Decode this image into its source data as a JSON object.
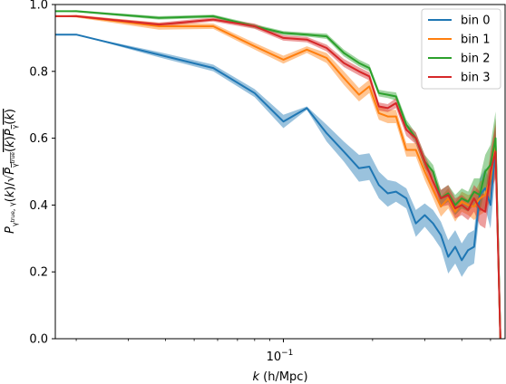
{
  "chart_data": {
    "type": "line",
    "xscale": "log",
    "xlim": [
      0.017,
      0.56
    ],
    "ylim": [
      0.0,
      1.0
    ],
    "xlabel_html": "<tspan font-style='italic'>k</tspan> (h/Mpc)",
    "ylabel_html": "<tspan font-style='italic'>P</tspan><tspan font-size='8' dy='4'>γ<tspan font-size='6' dy='-3'>true</tspan>, γ</tspan><tspan dy='-1'>(<tspan font-style='italic'>k</tspan>)/√</tspan><tspan text-decoration='overline'><tspan font-style='italic'>P</tspan><tspan font-size='8' dy='4'>γ<tspan font-size='6' dy='-3'>true</tspan></tspan><tspan dy='-1'>(<tspan font-style='italic'>k</tspan>)<tspan font-style='italic'>P</tspan></tspan><tspan font-size='8' dy='4'>γ</tspan><tspan dy='-4'>(<tspan font-style='italic'>k</tspan>)</tspan></tspan>",
    "xticks": [
      {
        "value": 0.1,
        "label": "10",
        "exp": "−1"
      }
    ],
    "yticks": [
      0.0,
      0.2,
      0.4,
      0.6,
      0.8,
      1.0
    ],
    "ytick_labels": [
      "0.0",
      "0.2",
      "0.4",
      "0.6",
      "0.8",
      "1.0"
    ],
    "grid": false,
    "legend_position": "top-right",
    "series": [
      {
        "name": "bin 0",
        "color": "#1f77b4",
        "x": [
          0.017,
          0.02,
          0.038,
          0.058,
          0.08,
          0.1,
          0.12,
          0.14,
          0.16,
          0.18,
          0.195,
          0.21,
          0.225,
          0.24,
          0.26,
          0.28,
          0.3,
          0.32,
          0.34,
          0.36,
          0.38,
          0.4,
          0.42,
          0.44,
          0.46,
          0.48,
          0.5,
          0.52,
          0.54
        ],
        "y": [
          0.91,
          0.91,
          0.85,
          0.81,
          0.735,
          0.65,
          0.69,
          0.615,
          0.56,
          0.51,
          0.515,
          0.46,
          0.435,
          0.44,
          0.42,
          0.345,
          0.37,
          0.345,
          0.31,
          0.245,
          0.275,
          0.235,
          0.265,
          0.275,
          0.43,
          0.45,
          0.4,
          0.58,
          0.0
        ],
        "err": [
          0.0,
          0.0,
          0.008,
          0.01,
          0.012,
          0.02,
          0.005,
          0.025,
          0.03,
          0.04,
          0.04,
          0.04,
          0.04,
          0.03,
          0.03,
          0.04,
          0.035,
          0.04,
          0.04,
          0.05,
          0.05,
          0.05,
          0.05,
          0.05,
          0.05,
          0.06,
          0.07,
          0.08,
          0.0
        ]
      },
      {
        "name": "bin 1",
        "color": "#ff7f0e",
        "x": [
          0.017,
          0.02,
          0.038,
          0.058,
          0.08,
          0.1,
          0.12,
          0.14,
          0.16,
          0.18,
          0.195,
          0.21,
          0.225,
          0.24,
          0.26,
          0.28,
          0.3,
          0.32,
          0.34,
          0.36,
          0.38,
          0.4,
          0.42,
          0.44,
          0.46,
          0.48,
          0.5,
          0.52,
          0.54
        ],
        "y": [
          0.965,
          0.965,
          0.935,
          0.935,
          0.875,
          0.835,
          0.865,
          0.84,
          0.78,
          0.73,
          0.755,
          0.675,
          0.665,
          0.665,
          0.565,
          0.565,
          0.5,
          0.445,
          0.395,
          0.42,
          0.38,
          0.41,
          0.4,
          0.395,
          0.42,
          0.43,
          0.48,
          0.58,
          0.0
        ],
        "err": [
          0.0,
          0.004,
          0.01,
          0.008,
          0.01,
          0.012,
          0.01,
          0.015,
          0.02,
          0.02,
          0.02,
          0.02,
          0.02,
          0.02,
          0.02,
          0.02,
          0.025,
          0.025,
          0.03,
          0.03,
          0.03,
          0.03,
          0.03,
          0.04,
          0.05,
          0.05,
          0.06,
          0.08,
          0.0
        ]
      },
      {
        "name": "bin 2",
        "color": "#2ca02c",
        "x": [
          0.017,
          0.02,
          0.038,
          0.058,
          0.08,
          0.1,
          0.12,
          0.14,
          0.16,
          0.18,
          0.195,
          0.21,
          0.225,
          0.24,
          0.26,
          0.28,
          0.3,
          0.32,
          0.34,
          0.36,
          0.38,
          0.4,
          0.42,
          0.44,
          0.46,
          0.48,
          0.5,
          0.52,
          0.54
        ],
        "y": [
          0.98,
          0.98,
          0.96,
          0.965,
          0.935,
          0.915,
          0.91,
          0.905,
          0.855,
          0.825,
          0.81,
          0.735,
          0.73,
          0.725,
          0.64,
          0.6,
          0.53,
          0.5,
          0.42,
          0.435,
          0.4,
          0.42,
          0.41,
          0.44,
          0.43,
          0.5,
          0.52,
          0.6,
          0.0
        ],
        "err": [
          0.0,
          0.003,
          0.005,
          0.005,
          0.006,
          0.006,
          0.006,
          0.008,
          0.01,
          0.01,
          0.01,
          0.01,
          0.01,
          0.012,
          0.015,
          0.015,
          0.02,
          0.02,
          0.025,
          0.025,
          0.03,
          0.03,
          0.03,
          0.04,
          0.05,
          0.05,
          0.06,
          0.08,
          0.0
        ]
      },
      {
        "name": "bin 3",
        "color": "#d62728",
        "x": [
          0.017,
          0.02,
          0.038,
          0.058,
          0.08,
          0.1,
          0.12,
          0.14,
          0.16,
          0.18,
          0.195,
          0.21,
          0.225,
          0.24,
          0.26,
          0.28,
          0.3,
          0.32,
          0.34,
          0.36,
          0.38,
          0.4,
          0.42,
          0.44,
          0.46,
          0.48,
          0.5,
          0.52,
          0.54
        ],
        "y": [
          0.965,
          0.965,
          0.94,
          0.955,
          0.935,
          0.9,
          0.895,
          0.87,
          0.825,
          0.8,
          0.785,
          0.695,
          0.69,
          0.705,
          0.625,
          0.6,
          0.53,
          0.47,
          0.42,
          0.43,
          0.39,
          0.4,
          0.385,
          0.42,
          0.39,
          0.38,
          0.5,
          0.56,
          0.0
        ],
        "err": [
          0.0,
          0.003,
          0.006,
          0.006,
          0.008,
          0.008,
          0.008,
          0.01,
          0.012,
          0.012,
          0.012,
          0.012,
          0.012,
          0.015,
          0.018,
          0.018,
          0.02,
          0.025,
          0.025,
          0.03,
          0.03,
          0.03,
          0.03,
          0.04,
          0.05,
          0.05,
          0.06,
          0.08,
          0.0
        ]
      }
    ]
  }
}
